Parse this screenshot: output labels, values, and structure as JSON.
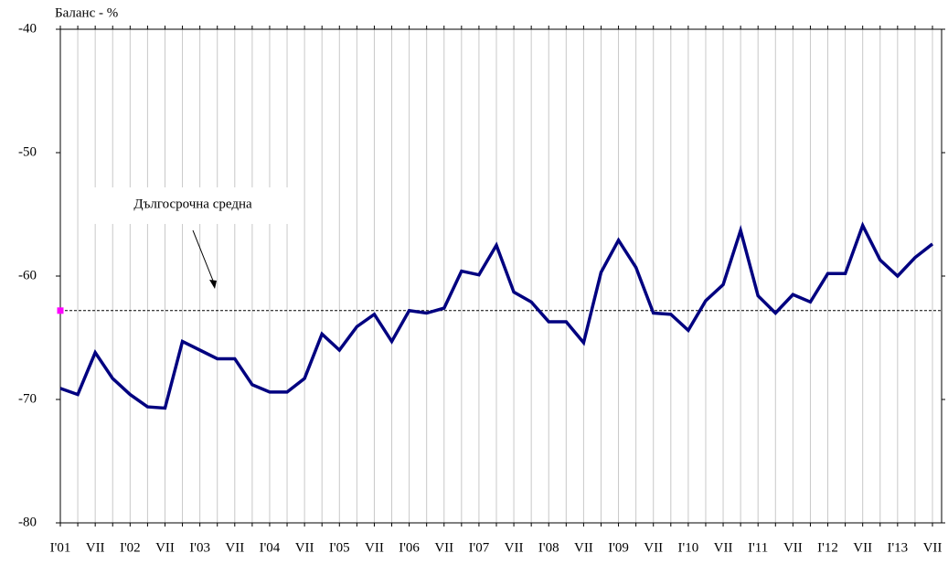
{
  "chart_data": {
    "type": "line",
    "title": "Баланс - %",
    "categories": [
      "I'01",
      null,
      "VII",
      null,
      "I'02",
      null,
      "VII",
      null,
      "I'03",
      null,
      "VII",
      null,
      "I'04",
      null,
      "VII",
      null,
      "I'05",
      null,
      "VII",
      null,
      "I'06",
      null,
      "VII",
      null,
      "I'07",
      null,
      "VII",
      null,
      "I'08",
      null,
      "VII",
      null,
      "I'09",
      null,
      "VII",
      null,
      "I'10",
      null,
      "VII",
      null,
      "I'11",
      null,
      "VII",
      null,
      "I'12",
      null,
      "VII",
      null,
      "I'13",
      null,
      "VII"
    ],
    "series": [
      {
        "color": "#000080",
        "values": [
          -69.1,
          -69.6,
          -66.2,
          -68.3,
          -69.6,
          -70.6,
          -70.7,
          -65.3,
          -66.0,
          -66.7,
          -66.7,
          -68.8,
          -69.4,
          -69.4,
          -68.3,
          -64.7,
          -66.0,
          -64.1,
          -63.1,
          -65.3,
          -62.8,
          -63.0,
          -62.6,
          -59.6,
          -59.9,
          -57.5,
          -61.3,
          -62.1,
          -63.7,
          -63.7,
          -65.4,
          -59.7,
          -57.1,
          -59.3,
          -63.0,
          -63.1,
          -64.4,
          -62.0,
          -60.7,
          -56.3,
          -61.6,
          -63.0,
          -61.5,
          -62.1,
          -59.8,
          -59.8,
          -55.9,
          -58.7,
          -60.0,
          -58.5,
          -57.4
        ]
      }
    ],
    "average": -62.8,
    "average_color": "#000000",
    "average_marker_color": "#ff00ff",
    "annotation": "Дългосрочна средна",
    "ylim": [
      -80,
      -40
    ],
    "yticks": [
      -80,
      -70,
      -60,
      -50,
      -40
    ],
    "grid": true
  }
}
